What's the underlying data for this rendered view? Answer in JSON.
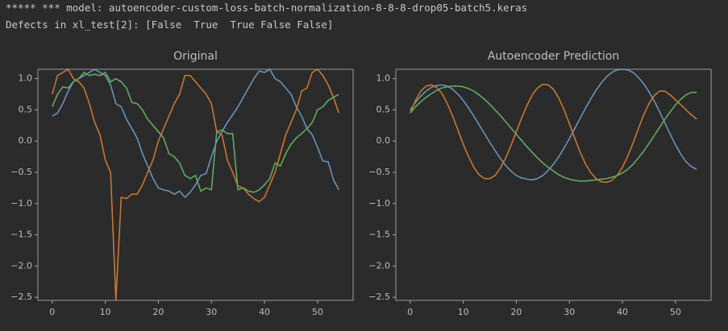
{
  "header": {
    "lines": [
      "***** *** model: autoencoder-custom-loss-batch-normalization-8-8-8-drop05-batch5.keras",
      "Defects in xl_test[2]: [False  True  True False False]"
    ]
  },
  "chart_data": [
    {
      "type": "line",
      "title": "Original",
      "x": [
        0,
        1,
        2,
        3,
        4,
        5,
        6,
        7,
        8,
        9,
        10,
        11,
        12,
        13,
        14,
        15,
        16,
        17,
        18,
        19,
        20,
        21,
        22,
        23,
        24,
        25,
        26,
        27,
        28,
        29,
        30,
        31,
        32,
        33,
        34,
        35,
        36,
        37,
        38,
        39,
        40,
        41,
        42,
        43,
        44,
        45,
        46,
        47,
        48,
        49,
        50,
        51,
        52,
        53,
        54
      ],
      "series": [
        {
          "color": "#6a92b8",
          "values": [
            0.4,
            0.45,
            0.6,
            0.8,
            0.95,
            1.0,
            1.05,
            1.1,
            1.15,
            1.1,
            1.05,
            0.9,
            0.6,
            0.55,
            0.35,
            0.2,
            0.05,
            -0.2,
            -0.4,
            -0.6,
            -0.75,
            -0.78,
            -0.8,
            -0.85,
            -0.8,
            -0.9,
            -0.82,
            -0.7,
            -0.55,
            -0.52,
            -0.25,
            0.0,
            0.15,
            0.3,
            0.42,
            0.55,
            0.7,
            0.85,
            1.0,
            1.12,
            1.1,
            1.15,
            1.0,
            0.95,
            0.85,
            0.75,
            0.55,
            0.4,
            0.2,
            0.1,
            -0.1,
            -0.32,
            -0.33,
            -0.62,
            -0.78
          ]
        },
        {
          "color": "#c8772f",
          "values": [
            0.75,
            1.05,
            1.1,
            1.15,
            1.0,
            0.95,
            0.85,
            0.6,
            0.3,
            0.1,
            -0.3,
            -0.5,
            -2.55,
            -0.9,
            -0.92,
            -0.85,
            -0.85,
            -0.7,
            -0.5,
            -0.3,
            0.0,
            0.2,
            0.4,
            0.6,
            0.75,
            1.05,
            1.05,
            0.95,
            0.85,
            0.75,
            0.6,
            0.15,
            0.1,
            -0.3,
            -0.5,
            -0.72,
            -0.75,
            -0.85,
            -0.92,
            -0.97,
            -0.9,
            -0.7,
            -0.5,
            -0.2,
            0.1,
            0.3,
            0.5,
            0.8,
            0.85,
            1.1,
            1.15,
            1.05,
            0.9,
            0.7,
            0.45
          ]
        },
        {
          "color": "#62a860",
          "values": [
            0.55,
            0.75,
            0.87,
            0.85,
            0.95,
            1.0,
            1.1,
            1.05,
            1.07,
            1.05,
            1.1,
            0.95,
            1.0,
            0.95,
            0.85,
            0.62,
            0.6,
            0.5,
            0.35,
            0.25,
            0.15,
            0.05,
            -0.2,
            -0.25,
            -0.35,
            -0.55,
            -0.6,
            -0.55,
            -0.8,
            -0.75,
            -0.78,
            0.15,
            0.18,
            0.12,
            0.12,
            -0.78,
            -0.75,
            -0.8,
            -0.82,
            -0.78,
            -0.7,
            -0.6,
            -0.35,
            -0.4,
            -0.2,
            -0.05,
            0.05,
            0.12,
            0.2,
            0.3,
            0.5,
            0.55,
            0.65,
            0.7,
            0.75
          ]
        }
      ],
      "xlim": [
        -2.7,
        56.7
      ],
      "xticks": [
        0,
        10,
        20,
        30,
        40,
        50
      ],
      "ylim": [
        -2.55,
        1.15
      ],
      "yticks": [
        {
          "value": 1.0,
          "label": "1.0"
        },
        {
          "value": 0.5,
          "label": "0.5"
        },
        {
          "value": 0.0,
          "label": "0.0"
        },
        {
          "value": -0.5,
          "label": "−0.5"
        },
        {
          "value": -1.0,
          "label": "−1.0"
        },
        {
          "value": -1.5,
          "label": "−1.5"
        },
        {
          "value": -2.0,
          "label": "−2.0"
        },
        {
          "value": -2.5,
          "label": "−2.5"
        }
      ]
    },
    {
      "type": "line",
      "title": "Autoencoder Prediction",
      "x": [
        0,
        1,
        2,
        3,
        4,
        5,
        6,
        7,
        8,
        9,
        10,
        11,
        12,
        13,
        14,
        15,
        16,
        17,
        18,
        19,
        20,
        21,
        22,
        23,
        24,
        25,
        26,
        27,
        28,
        29,
        30,
        31,
        32,
        33,
        34,
        35,
        36,
        37,
        38,
        39,
        40,
        41,
        42,
        43,
        44,
        45,
        46,
        47,
        48,
        49,
        50,
        51,
        52,
        53,
        54
      ],
      "series": [
        {
          "color": "#6a92b8",
          "values": [
            0.5,
            0.62,
            0.72,
            0.8,
            0.86,
            0.89,
            0.9,
            0.88,
            0.83,
            0.75,
            0.65,
            0.53,
            0.4,
            0.26,
            0.12,
            -0.02,
            -0.15,
            -0.28,
            -0.39,
            -0.48,
            -0.55,
            -0.59,
            -0.61,
            -0.62,
            -0.6,
            -0.55,
            -0.47,
            -0.37,
            -0.25,
            -0.11,
            0.04,
            0.2,
            0.36,
            0.52,
            0.67,
            0.81,
            0.93,
            1.03,
            1.1,
            1.14,
            1.15,
            1.14,
            1.1,
            1.02,
            0.92,
            0.79,
            0.64,
            0.47,
            0.29,
            0.11,
            -0.06,
            -0.21,
            -0.33,
            -0.41,
            -0.45
          ]
        },
        {
          "color": "#c8772f",
          "values": [
            0.45,
            0.65,
            0.8,
            0.88,
            0.9,
            0.86,
            0.76,
            0.6,
            0.4,
            0.18,
            -0.05,
            -0.25,
            -0.42,
            -0.54,
            -0.6,
            -0.6,
            -0.55,
            -0.43,
            -0.27,
            -0.07,
            0.15,
            0.37,
            0.57,
            0.74,
            0.85,
            0.91,
            0.9,
            0.83,
            0.69,
            0.5,
            0.28,
            0.05,
            -0.17,
            -0.36,
            -0.5,
            -0.6,
            -0.65,
            -0.66,
            -0.63,
            -0.55,
            -0.42,
            -0.24,
            -0.03,
            0.2,
            0.42,
            0.6,
            0.73,
            0.8,
            0.8,
            0.74,
            0.66,
            0.58,
            0.5,
            0.42,
            0.35
          ]
        },
        {
          "color": "#62a860",
          "values": [
            0.45,
            0.55,
            0.63,
            0.7,
            0.76,
            0.81,
            0.85,
            0.87,
            0.88,
            0.88,
            0.87,
            0.84,
            0.8,
            0.74,
            0.67,
            0.59,
            0.5,
            0.41,
            0.31,
            0.21,
            0.11,
            0.01,
            -0.09,
            -0.18,
            -0.27,
            -0.35,
            -0.42,
            -0.48,
            -0.54,
            -0.58,
            -0.61,
            -0.63,
            -0.64,
            -0.64,
            -0.63,
            -0.62,
            -0.61,
            -0.6,
            -0.58,
            -0.55,
            -0.51,
            -0.45,
            -0.37,
            -0.27,
            -0.16,
            -0.04,
            0.09,
            0.22,
            0.35,
            0.47,
            0.58,
            0.67,
            0.74,
            0.78,
            0.78
          ]
        }
      ],
      "xlim": [
        -2.7,
        56.7
      ],
      "xticks": [
        0,
        10,
        20,
        30,
        40,
        50
      ],
      "ylim": [
        -2.55,
        1.15
      ],
      "yticks": [
        {
          "value": 1.0,
          "label": "1.0"
        },
        {
          "value": 0.5,
          "label": "0.5"
        },
        {
          "value": 0.0,
          "label": "0.0"
        },
        {
          "value": -0.5,
          "label": "−0.5"
        },
        {
          "value": -1.0,
          "label": "−1.0"
        },
        {
          "value": -1.5,
          "label": "−1.5"
        },
        {
          "value": -2.0,
          "label": "−2.0"
        },
        {
          "value": -2.5,
          "label": "−2.5"
        }
      ]
    }
  ]
}
